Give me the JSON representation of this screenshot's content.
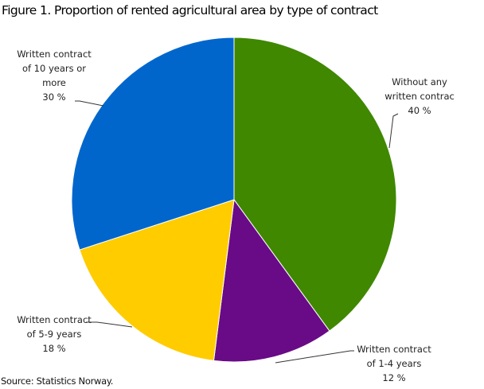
{
  "chart_data": {
    "type": "pie",
    "title": "Figure 1. Proportion of rented agricultural area by type of contract",
    "source": "Source: Statistics Norway.",
    "start_angle": "top",
    "direction": "clockwise",
    "slices": [
      {
        "label_lines": [
          "Without any",
          "written contrac"
        ],
        "value": 40,
        "value_label": "40 %",
        "color": "#3f8800"
      },
      {
        "label_lines": [
          "Written contract",
          "of 1-4 years"
        ],
        "value": 12,
        "value_label": "12 %",
        "color": "#690a87"
      },
      {
        "label_lines": [
          "Written contract",
          "of 5-9 years"
        ],
        "value": 18,
        "value_label": "18 %",
        "color": "#ffcc00"
      },
      {
        "label_lines": [
          "Written contract",
          "of 10 years or",
          "more"
        ],
        "value": 30,
        "value_label": "30 %",
        "color": "#0066cc"
      }
    ]
  }
}
